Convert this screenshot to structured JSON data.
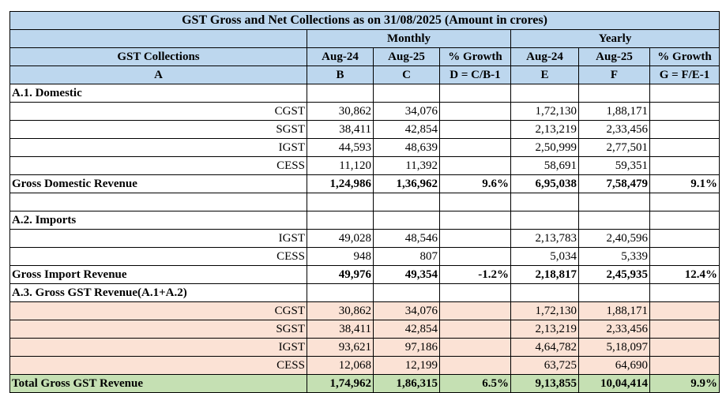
{
  "title": "GST Gross and Net Collections as on  31/08/2025 (Amount in crores)",
  "headers": {
    "monthly": "Monthly",
    "yearly": "Yearly",
    "collections": "GST Collections",
    "columns": [
      "Aug-24",
      "Aug-25",
      "% Growth",
      "Aug-24",
      "Aug-25",
      "% Growth"
    ],
    "codes": [
      "A",
      "B",
      "C",
      "D = C/B-1",
      "E",
      "F",
      "G = F/E-1"
    ]
  },
  "domestic": {
    "section": "A.1. Domestic",
    "rows": [
      {
        "label": "CGST",
        "b": "30,862",
        "c": "34,076",
        "d": "",
        "e": "1,72,130",
        "f": "1,88,171",
        "g": ""
      },
      {
        "label": "SGST",
        "b": "38,411",
        "c": "42,854",
        "d": "",
        "e": "2,13,219",
        "f": "2,33,456",
        "g": ""
      },
      {
        "label": "IGST",
        "b": "44,593",
        "c": "48,639",
        "d": "",
        "e": "2,50,999",
        "f": "2,77,501",
        "g": ""
      },
      {
        "label": "CESS",
        "b": "11,120",
        "c": "11,392",
        "d": "",
        "e": "58,691",
        "f": "59,351",
        "g": ""
      }
    ],
    "total": {
      "label": "Gross Domestic Revenue",
      "b": "1,24,986",
      "c": "1,36,962",
      "d": "9.6%",
      "e": "6,95,038",
      "f": "7,58,479",
      "g": "9.1%"
    }
  },
  "imports": {
    "section": "A.2. Imports",
    "rows": [
      {
        "label": "IGST",
        "b": "49,028",
        "c": "48,546",
        "d": "",
        "e": "2,13,783",
        "f": "2,40,596",
        "g": ""
      },
      {
        "label": "CESS",
        "b": "948",
        "c": "807",
        "d": "",
        "e": "5,034",
        "f": "5,339",
        "g": ""
      }
    ],
    "total": {
      "label": "Gross Import Revenue",
      "b": "49,976",
      "c": "49,354",
      "d": "-1.2%",
      "e": "2,18,817",
      "f": "2,45,935",
      "g": "12.4%"
    }
  },
  "gross": {
    "section": "A.3. Gross GST Revenue(A.1+A.2)",
    "rows": [
      {
        "label": "CGST",
        "b": "30,862",
        "c": "34,076",
        "d": "",
        "e": "1,72,130",
        "f": "1,88,171",
        "g": ""
      },
      {
        "label": "SGST",
        "b": "38,411",
        "c": "42,854",
        "d": "",
        "e": "2,13,219",
        "f": "2,33,456",
        "g": ""
      },
      {
        "label": "IGST",
        "b": "93,621",
        "c": "97,186",
        "d": "",
        "e": "4,64,782",
        "f": "5,18,097",
        "g": ""
      },
      {
        "label": "CESS",
        "b": "12,068",
        "c": "12,199",
        "d": "",
        "e": "63,725",
        "f": "64,690",
        "g": ""
      }
    ],
    "total": {
      "label": "Total Gross GST Revenue",
      "b": "1,74,962",
      "c": "1,86,315",
      "d": "6.5%",
      "e": "9,13,855",
      "f": "10,04,414",
      "g": "9.9%"
    }
  },
  "colors": {
    "header_bg": "#bdd7ee",
    "gross_rows_bg": "#fbe2d5",
    "total_bg": "#c5e0b3"
  }
}
